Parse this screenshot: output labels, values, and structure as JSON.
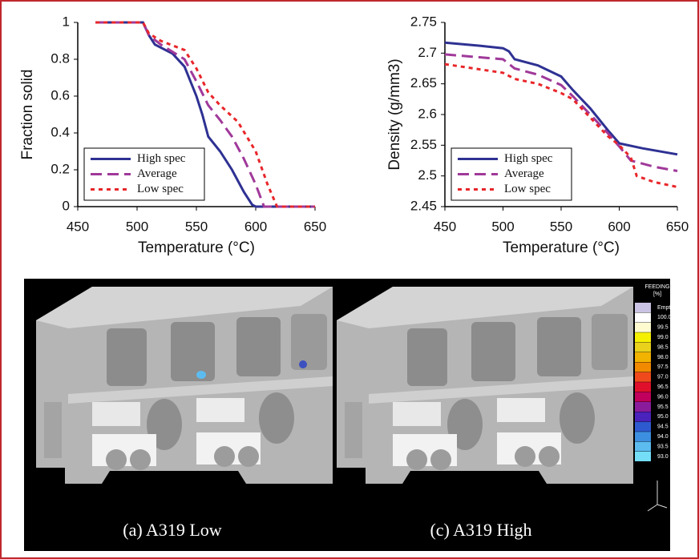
{
  "chart_data": [
    {
      "type": "line",
      "x_label": "Temperature (°C)",
      "y_label": "Fraction solid",
      "xlim": [
        450,
        650
      ],
      "xticks": [
        450,
        500,
        550,
        600,
        650
      ],
      "ylim": [
        0,
        1
      ],
      "yticks": [
        0,
        0.2,
        0.4,
        0.6,
        0.8,
        1
      ],
      "legend": "lower left",
      "series": [
        {
          "name": "High spec",
          "color": "#2e3192",
          "style": "solid",
          "x": [
            465,
            505,
            510,
            515,
            530,
            540,
            550,
            555,
            560,
            570,
            580,
            590,
            597,
            600,
            650
          ],
          "values": [
            1,
            1,
            0.93,
            0.88,
            0.83,
            0.76,
            0.6,
            0.5,
            0.38,
            0.3,
            0.2,
            0.08,
            0.01,
            0,
            0
          ]
        },
        {
          "name": "Average",
          "color": "#a0399a",
          "style": "dashed",
          "x": [
            465,
            505,
            510,
            520,
            540,
            550,
            560,
            570,
            580,
            590,
            600,
            607,
            650
          ],
          "values": [
            1,
            1,
            0.93,
            0.88,
            0.8,
            0.68,
            0.55,
            0.47,
            0.38,
            0.26,
            0.12,
            0,
            0
          ]
        },
        {
          "name": "Low spec",
          "color": "#e8262a",
          "style": "dotted",
          "x": [
            465,
            505,
            510,
            520,
            540,
            550,
            560,
            570,
            585,
            600,
            610,
            618,
            650
          ],
          "values": [
            1,
            1,
            0.94,
            0.9,
            0.85,
            0.75,
            0.62,
            0.55,
            0.46,
            0.3,
            0.12,
            0,
            0
          ]
        }
      ]
    },
    {
      "type": "line",
      "x_label": "Temperature (°C)",
      "y_label": "Density (g/mm3)",
      "xlim": [
        450,
        650
      ],
      "xticks": [
        450,
        500,
        550,
        600,
        650
      ],
      "ylim": [
        2.45,
        2.75
      ],
      "yticks": [
        2.45,
        2.5,
        2.55,
        2.6,
        2.65,
        2.7,
        2.75
      ],
      "legend": "lower left",
      "series": [
        {
          "name": "High spec",
          "color": "#2e3192",
          "style": "solid",
          "x": [
            450,
            480,
            500,
            505,
            510,
            530,
            550,
            560,
            575,
            590,
            600,
            620,
            650
          ],
          "values": [
            2.717,
            2.712,
            2.708,
            2.703,
            2.69,
            2.68,
            2.662,
            2.64,
            2.61,
            2.575,
            2.553,
            2.545,
            2.535
          ]
        },
        {
          "name": "Average",
          "color": "#a0399a",
          "style": "dashed",
          "x": [
            450,
            500,
            510,
            530,
            550,
            560,
            575,
            590,
            600,
            610,
            630,
            650
          ],
          "values": [
            2.698,
            2.69,
            2.675,
            2.665,
            2.648,
            2.63,
            2.6,
            2.57,
            2.548,
            2.525,
            2.515,
            2.508
          ]
        },
        {
          "name": "Low spec",
          "color": "#e8262a",
          "style": "dotted",
          "x": [
            450,
            500,
            510,
            530,
            550,
            560,
            575,
            590,
            600,
            610,
            615,
            630,
            650
          ],
          "values": [
            2.682,
            2.668,
            2.658,
            2.65,
            2.635,
            2.625,
            2.595,
            2.565,
            2.55,
            2.53,
            2.5,
            2.49,
            2.482
          ]
        }
      ]
    }
  ],
  "image_panel": {
    "captions": [
      "(a) A319 Low",
      "(c) A319 High"
    ],
    "colorbar": {
      "title": "FEEDING",
      "unit": "[%]",
      "entries": [
        {
          "label": "Empty",
          "color": "#cbc3e3"
        },
        {
          "label": "100.0",
          "color": "#ffffff"
        },
        {
          "label": "99.5",
          "color": "#fffbd0"
        },
        {
          "label": "99.0",
          "color": "#f5f000"
        },
        {
          "label": "98.5",
          "color": "#ead21c"
        },
        {
          "label": "98.0",
          "color": "#f2b200"
        },
        {
          "label": "97.5",
          "color": "#f28a00"
        },
        {
          "label": "97.0",
          "color": "#f04a1c"
        },
        {
          "label": "96.5",
          "color": "#e0102c"
        },
        {
          "label": "96.0",
          "color": "#c0005c"
        },
        {
          "label": "95.5",
          "color": "#8a1c9c"
        },
        {
          "label": "95.0",
          "color": "#4a22bc"
        },
        {
          "label": "94.5",
          "color": "#2e5ad0"
        },
        {
          "label": "94.0",
          "color": "#3c8ee0"
        },
        {
          "label": "93.5",
          "color": "#5cbcf0"
        },
        {
          "label": "93.0",
          "color": "#74def8"
        }
      ]
    }
  }
}
